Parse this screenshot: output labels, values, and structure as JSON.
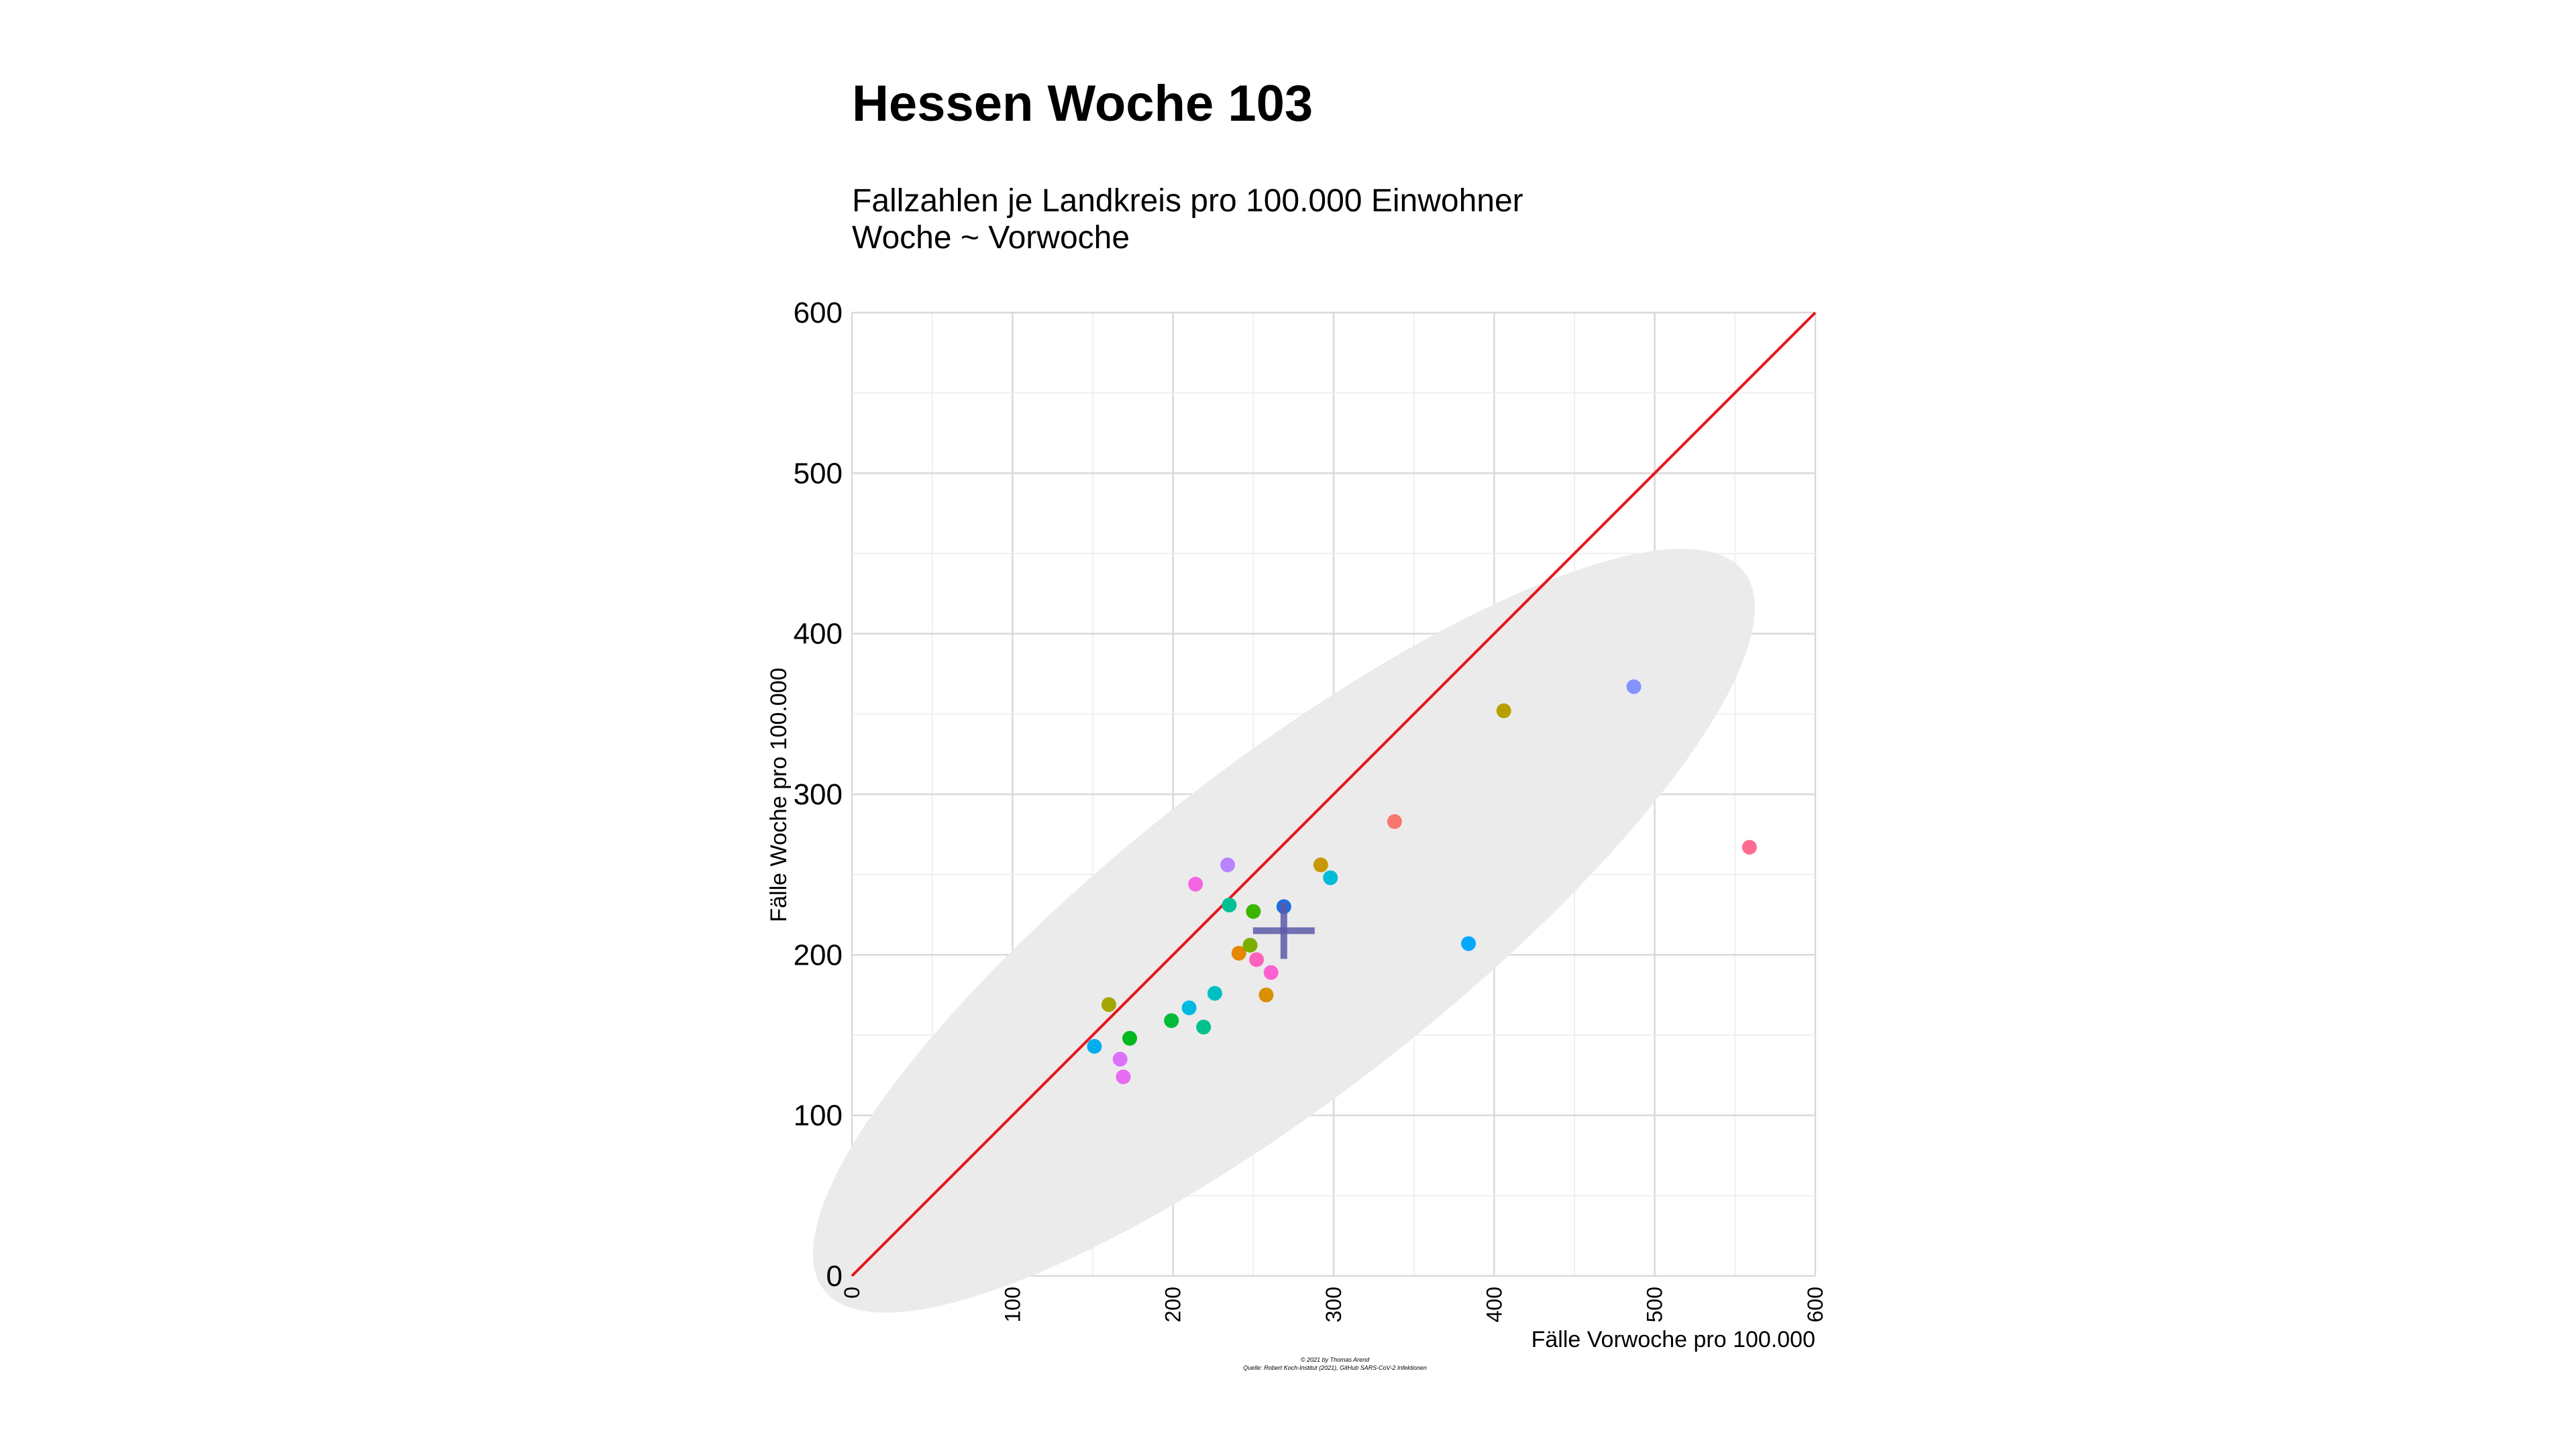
{
  "chart_data": {
    "type": "scatter",
    "title": "Hessen Woche 103",
    "subtitle_lines": [
      "Fallzahlen je Landkreis pro 100.000 Einwohner",
      "Woche ~ Vorwoche"
    ],
    "xlabel": "Fälle Vorwoche pro 100.000",
    "ylabel": "Fälle Woche pro 100.000",
    "xlim": [
      0,
      600
    ],
    "ylim": [
      0,
      600
    ],
    "x_ticks": [
      "0",
      "100",
      "200",
      "300",
      "400",
      "500",
      "600"
    ],
    "y_ticks": [
      "0",
      "100",
      "200",
      "300",
      "400",
      "500",
      "600"
    ],
    "grid": true,
    "reference_line": {
      "type": "identity",
      "color": "#e8141c"
    },
    "confidence_ellipse": {
      "center": [
        269,
        215
      ],
      "color": "#ebebeb"
    },
    "mean_marker": {
      "x": 269,
      "y": 215,
      "color": "#5b5ba8"
    },
    "points": [
      {
        "x": 151,
        "y": 143,
        "color": "#00aeef"
      },
      {
        "x": 160,
        "y": 169,
        "color": "#a3a500"
      },
      {
        "x": 167,
        "y": 135,
        "color": "#dc71fa"
      },
      {
        "x": 169,
        "y": 124,
        "color": "#e76bf3"
      },
      {
        "x": 173,
        "y": 148,
        "color": "#00b81f"
      },
      {
        "x": 199,
        "y": 159,
        "color": "#00ba38"
      },
      {
        "x": 210,
        "y": 167,
        "color": "#00b9e3"
      },
      {
        "x": 214,
        "y": 244,
        "color": "#f564e3"
      },
      {
        "x": 219,
        "y": 155,
        "color": "#00c08b"
      },
      {
        "x": 226,
        "y": 176,
        "color": "#00bfc4"
      },
      {
        "x": 234,
        "y": 256,
        "color": "#b983ff"
      },
      {
        "x": 235,
        "y": 231,
        "color": "#00c094"
      },
      {
        "x": 241,
        "y": 201,
        "color": "#e58700"
      },
      {
        "x": 248,
        "y": 206,
        "color": "#7cae00"
      },
      {
        "x": 250,
        "y": 227,
        "color": "#39b600"
      },
      {
        "x": 252,
        "y": 197,
        "color": "#ff62bc"
      },
      {
        "x": 258,
        "y": 175,
        "color": "#d89000"
      },
      {
        "x": 261,
        "y": 189,
        "color": "#fd61d1"
      },
      {
        "x": 269,
        "y": 230,
        "color": "#1c6edc"
      },
      {
        "x": 292,
        "y": 256,
        "color": "#c99800"
      },
      {
        "x": 298,
        "y": 248,
        "color": "#00bcd8"
      },
      {
        "x": 338,
        "y": 283,
        "color": "#f8766d"
      },
      {
        "x": 384,
        "y": 207,
        "color": "#00a9ff"
      },
      {
        "x": 406,
        "y": 352,
        "color": "#b79f00"
      },
      {
        "x": 487,
        "y": 367,
        "color": "#8494ff"
      },
      {
        "x": 559,
        "y": 267,
        "color": "#ff6c91"
      }
    ]
  },
  "caption": {
    "line1": "© 2021 by Thomas Arend",
    "line2": "Quelle: Robert Koch-Institut (2021), GitHub SARS-CoV-2 Infektionen"
  }
}
